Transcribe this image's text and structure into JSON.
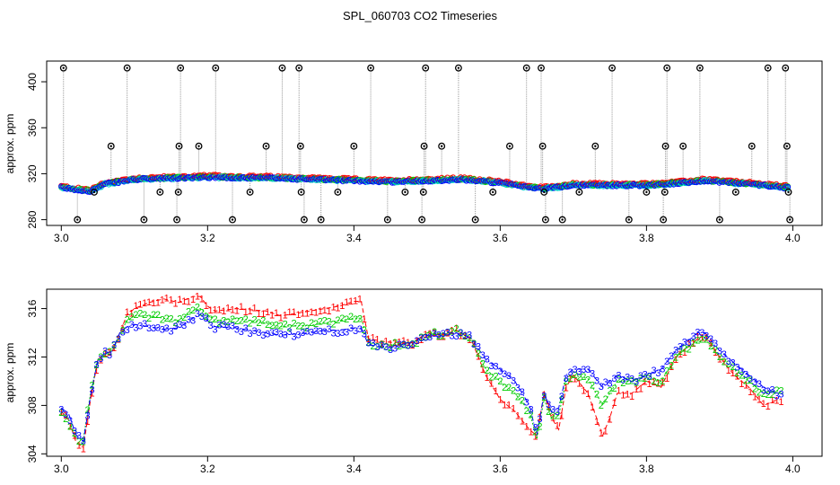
{
  "title": "SPL_060703  CO2 Timeseries",
  "colors": {
    "s1": "#ff0000",
    "s2": "#00cc00",
    "s3": "#0000ff",
    "s4": "#00cccc",
    "flag": "#000000",
    "spike": "#999999"
  },
  "chart_data": [
    {
      "type": "scatter",
      "ylabel": "approx. ppm",
      "xlim": [
        2.98,
        4.04
      ],
      "ylim": [
        275,
        418
      ],
      "xticks": [
        "3.0",
        "3.2",
        "3.4",
        "3.6",
        "3.8",
        "4.0"
      ],
      "xtick_values": [
        3.0,
        3.2,
        3.4,
        3.6,
        3.8,
        4.0
      ],
      "yticks": [
        "280",
        "320",
        "360",
        "400"
      ],
      "ytick_values": [
        280,
        320,
        360,
        400
      ],
      "baseline": {
        "x": [
          3.0,
          3.02,
          3.04,
          3.06,
          3.08,
          3.1,
          3.15,
          3.2,
          3.3,
          3.4,
          3.45,
          3.5,
          3.55,
          3.6,
          3.64,
          3.66,
          3.7,
          3.8,
          3.85,
          3.88,
          3.92,
          3.96,
          3.99
        ],
        "y": [
          308,
          306,
          305,
          311,
          313,
          315,
          316,
          317,
          316,
          314,
          313,
          314,
          315,
          312,
          308,
          307,
          310,
          310,
          312,
          314,
          312,
          310,
          308
        ]
      },
      "flagged_points": [
        {
          "x": 3.003,
          "y": 412
        },
        {
          "x": 3.022,
          "y": 280
        },
        {
          "x": 3.045,
          "y": 304
        },
        {
          "x": 3.068,
          "y": 344
        },
        {
          "x": 3.09,
          "y": 412
        },
        {
          "x": 3.113,
          "y": 280
        },
        {
          "x": 3.135,
          "y": 304
        },
        {
          "x": 3.158,
          "y": 280
        },
        {
          "x": 3.16,
          "y": 304
        },
        {
          "x": 3.161,
          "y": 344
        },
        {
          "x": 3.163,
          "y": 412
        },
        {
          "x": 3.188,
          "y": 344
        },
        {
          "x": 3.211,
          "y": 412
        },
        {
          "x": 3.234,
          "y": 280
        },
        {
          "x": 3.258,
          "y": 304
        },
        {
          "x": 3.28,
          "y": 344
        },
        {
          "x": 3.302,
          "y": 412
        },
        {
          "x": 3.325,
          "y": 412
        },
        {
          "x": 3.327,
          "y": 344
        },
        {
          "x": 3.328,
          "y": 304
        },
        {
          "x": 3.332,
          "y": 280
        },
        {
          "x": 3.355,
          "y": 280
        },
        {
          "x": 3.378,
          "y": 304
        },
        {
          "x": 3.4,
          "y": 344
        },
        {
          "x": 3.423,
          "y": 412
        },
        {
          "x": 3.446,
          "y": 280
        },
        {
          "x": 3.47,
          "y": 304
        },
        {
          "x": 3.493,
          "y": 280
        },
        {
          "x": 3.495,
          "y": 304
        },
        {
          "x": 3.496,
          "y": 344
        },
        {
          "x": 3.498,
          "y": 412
        },
        {
          "x": 3.52,
          "y": 344
        },
        {
          "x": 3.543,
          "y": 412
        },
        {
          "x": 3.566,
          "y": 280
        },
        {
          "x": 3.59,
          "y": 304
        },
        {
          "x": 3.613,
          "y": 344
        },
        {
          "x": 3.636,
          "y": 412
        },
        {
          "x": 3.656,
          "y": 412
        },
        {
          "x": 3.658,
          "y": 344
        },
        {
          "x": 3.66,
          "y": 304
        },
        {
          "x": 3.662,
          "y": 280
        },
        {
          "x": 3.685,
          "y": 280
        },
        {
          "x": 3.708,
          "y": 304
        },
        {
          "x": 3.73,
          "y": 344
        },
        {
          "x": 3.753,
          "y": 412
        },
        {
          "x": 3.776,
          "y": 280
        },
        {
          "x": 3.8,
          "y": 304
        },
        {
          "x": 3.823,
          "y": 280
        },
        {
          "x": 3.825,
          "y": 304
        },
        {
          "x": 3.826,
          "y": 344
        },
        {
          "x": 3.828,
          "y": 412
        },
        {
          "x": 3.85,
          "y": 344
        },
        {
          "x": 3.873,
          "y": 412
        },
        {
          "x": 3.9,
          "y": 280
        },
        {
          "x": 3.922,
          "y": 304
        },
        {
          "x": 3.944,
          "y": 344
        },
        {
          "x": 3.966,
          "y": 412
        },
        {
          "x": 3.99,
          "y": 412
        },
        {
          "x": 3.992,
          "y": 344
        },
        {
          "x": 3.994,
          "y": 304
        },
        {
          "x": 3.996,
          "y": 280
        }
      ]
    },
    {
      "type": "line",
      "ylabel": "approx. ppm",
      "xlim": [
        2.98,
        4.04
      ],
      "ylim": [
        303.8,
        317.6
      ],
      "xticks": [
        "3.0",
        "3.2",
        "3.4",
        "3.6",
        "3.8",
        "4.0"
      ],
      "xtick_values": [
        3.0,
        3.2,
        3.4,
        3.6,
        3.8,
        4.0
      ],
      "yticks": [
        "304",
        "308",
        "312",
        "316"
      ],
      "ytick_values": [
        304,
        308,
        312,
        316
      ],
      "x": [
        3.0,
        3.01,
        3.02,
        3.03,
        3.04,
        3.05,
        3.06,
        3.07,
        3.08,
        3.09,
        3.1,
        3.12,
        3.14,
        3.16,
        3.18,
        3.19,
        3.2,
        3.21,
        3.24,
        3.28,
        3.3,
        3.32,
        3.34,
        3.36,
        3.38,
        3.4,
        3.41,
        3.42,
        3.45,
        3.48,
        3.5,
        3.52,
        3.54,
        3.56,
        3.58,
        3.6,
        3.62,
        3.64,
        3.65,
        3.66,
        3.67,
        3.68,
        3.69,
        3.7,
        3.72,
        3.74,
        3.75,
        3.76,
        3.78,
        3.8,
        3.82,
        3.84,
        3.86,
        3.87,
        3.88,
        3.9,
        3.92,
        3.94,
        3.96,
        3.98
      ],
      "series": [
        {
          "name": "1",
          "values": [
            307.5,
            306.8,
            305.0,
            304.5,
            308.5,
            311.8,
            312.3,
            312.5,
            314.0,
            315.5,
            316.0,
            316.5,
            316.8,
            316.5,
            317.0,
            317.0,
            316.2,
            315.8,
            316.0,
            315.8,
            315.4,
            315.6,
            315.8,
            316.0,
            316.2,
            316.6,
            316.6,
            313.5,
            313.2,
            313.2,
            314.0,
            313.8,
            314.2,
            313.5,
            310.5,
            308.5,
            307.5,
            306.0,
            305.5,
            309.0,
            307.0,
            306.0,
            309.5,
            310.5,
            309.0,
            305.5,
            307.0,
            309.0,
            309.0,
            310.0,
            309.5,
            312.0,
            313.0,
            313.5,
            313.8,
            312.0,
            310.5,
            309.5,
            308.0,
            308.5
          ]
        },
        {
          "name": "2",
          "values": [
            307.5,
            306.8,
            305.3,
            305.2,
            309.0,
            311.8,
            312.3,
            312.5,
            314.0,
            315.0,
            315.4,
            315.4,
            315.2,
            315.0,
            315.8,
            316.0,
            315.5,
            315.0,
            315.2,
            314.8,
            314.5,
            314.6,
            314.6,
            314.8,
            315.0,
            315.2,
            315.2,
            313.2,
            313.0,
            313.1,
            314.0,
            313.8,
            314.2,
            313.5,
            311.0,
            310.0,
            309.0,
            307.5,
            305.2,
            308.5,
            307.0,
            307.2,
            310.0,
            310.5,
            310.2,
            308.0,
            309.0,
            310.0,
            310.0,
            310.5,
            310.0,
            312.0,
            313.0,
            313.2,
            313.5,
            312.0,
            311.0,
            310.0,
            309.0,
            309.2
          ]
        },
        {
          "name": "3",
          "values": [
            307.8,
            307.3,
            305.6,
            305.0,
            308.8,
            311.8,
            312.3,
            312.5,
            314.0,
            314.5,
            314.7,
            314.5,
            314.3,
            314.4,
            315.2,
            315.5,
            315.0,
            314.5,
            314.4,
            314.0,
            313.8,
            313.9,
            314.0,
            314.2,
            314.2,
            314.4,
            314.4,
            313.0,
            312.8,
            313.2,
            313.8,
            313.7,
            314.0,
            313.6,
            311.8,
            311.0,
            310.0,
            308.0,
            305.5,
            309.0,
            307.5,
            307.8,
            310.5,
            311.0,
            311.0,
            309.5,
            310.0,
            310.5,
            310.0,
            310.5,
            311.0,
            312.5,
            313.5,
            314.0,
            314.0,
            312.5,
            311.5,
            310.5,
            309.5,
            309.0
          ]
        }
      ]
    }
  ]
}
